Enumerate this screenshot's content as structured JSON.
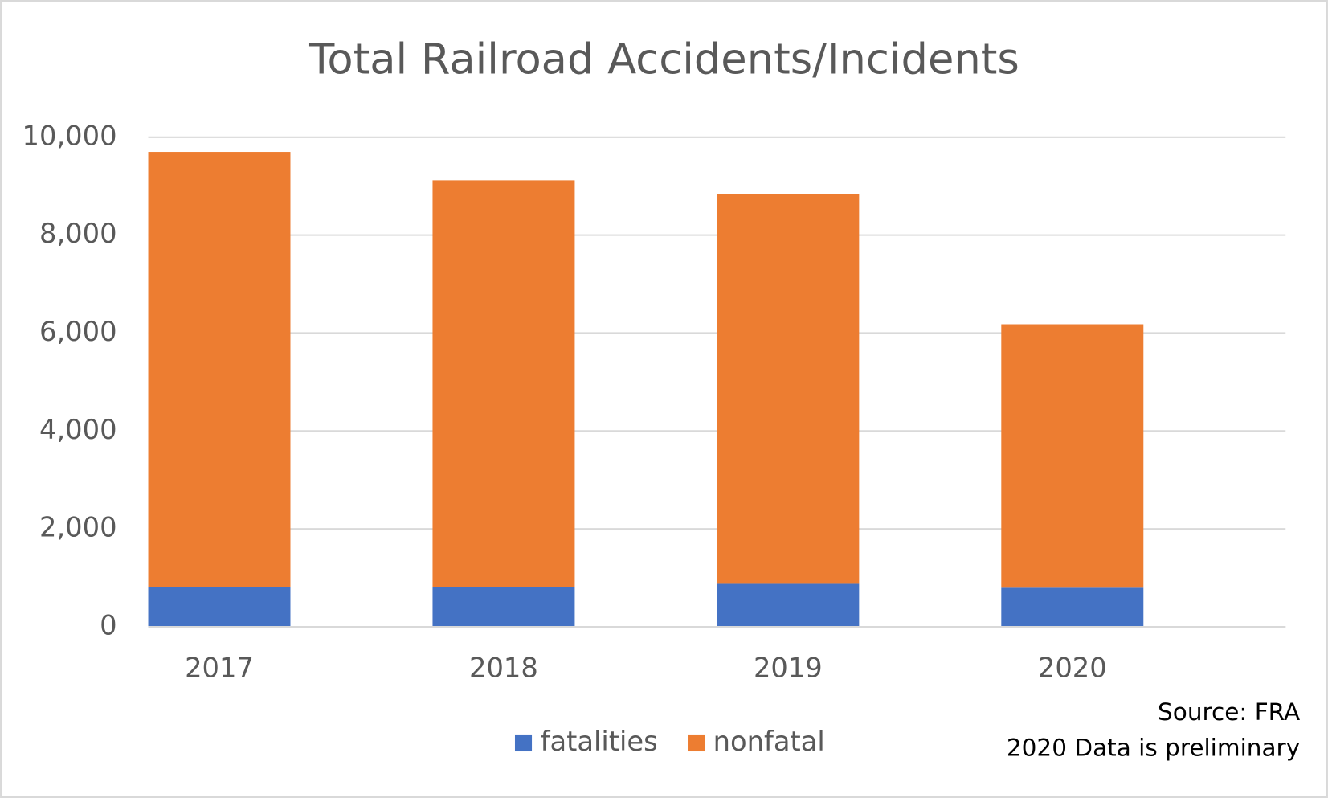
{
  "chart_data": {
    "type": "stacked_bar",
    "title": "Total Railroad Accidents/Incidents",
    "categories": [
      "2017",
      "2018",
      "2019",
      "2020"
    ],
    "series": [
      {
        "name": "fatalities",
        "color": "#4472c4",
        "values": [
          820,
          810,
          880,
          800
        ]
      },
      {
        "name": "nonfatal",
        "color": "#ed7d31",
        "values": [
          8880,
          8310,
          7960,
          5380
        ]
      }
    ],
    "ylim": [
      0,
      10000
    ],
    "yticks": [
      0,
      {
        "value": 2000,
        "label": "2,000"
      },
      {
        "value": 4000,
        "label": "4,000"
      },
      {
        "value": 6000,
        "label": "6,000"
      },
      {
        "value": 8000,
        "label": "8,000"
      },
      {
        "value": 10000,
        "label": "10,000"
      }
    ],
    "grid": true,
    "legend": "bottom",
    "annotations": [
      "Source: FRA",
      "2020 Data is preliminary"
    ]
  }
}
